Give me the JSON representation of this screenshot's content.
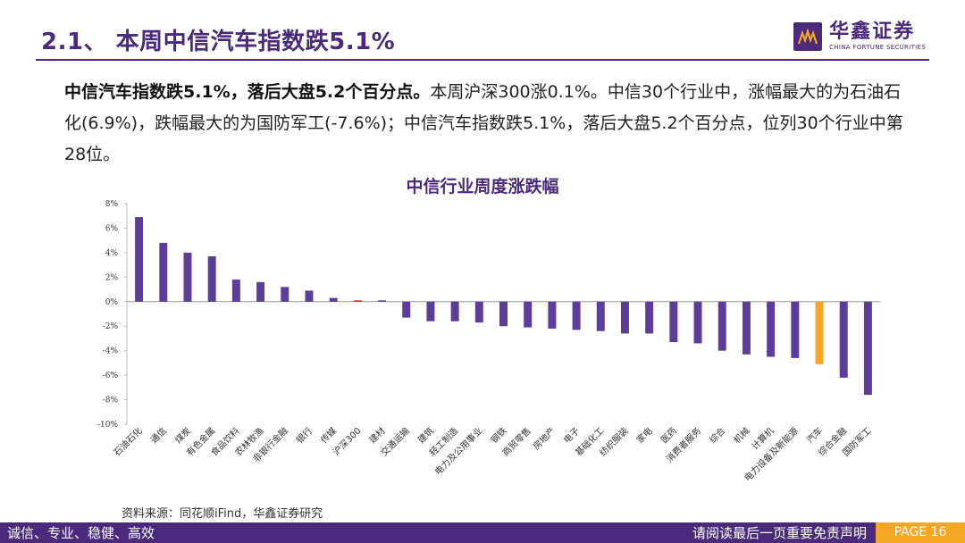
{
  "header": {
    "title": "2.1、 本周中信汽车指数跌5.1%",
    "logo_cn": "华鑫证券",
    "logo_en": "CHINA FORTUNE SECURITIES"
  },
  "summary": {
    "lead": "中信汽车指数跌5.1%，落后大盘5.2个百分点。",
    "body": "本周沪深300涨0.1%。中信30个行业中，涨幅最大的为石油石化(6.9%)，跌幅最大的为国防军工(-7.6%)；中信汽车指数跌5.1%，落后大盘5.2个百分点，位列30个行业中第28位。"
  },
  "chart_data": {
    "type": "bar",
    "title": "中信行业周度涨跌幅",
    "xlabel": "",
    "ylabel": "",
    "ylim": [
      -10,
      8
    ],
    "yticks": [
      "8%",
      "6%",
      "4%",
      "2%",
      "0%",
      "-2%",
      "-4%",
      "-6%",
      "-8%",
      "-10%"
    ],
    "categories": [
      "石油石化",
      "通信",
      "煤炭",
      "有色金属",
      "食品饮料",
      "农林牧渔",
      "非银行金融",
      "银行",
      "传媒",
      "沪深300",
      "建材",
      "交通运输",
      "建筑",
      "轻工制造",
      "电力及公用事业",
      "钢铁",
      "商贸零售",
      "房地产",
      "电子",
      "基础化工",
      "纺织服装",
      "家电",
      "医药",
      "消费者服务",
      "综合",
      "机械",
      "计算机",
      "电力设备及新能源",
      "汽车",
      "综合金融",
      "国防军工"
    ],
    "values": [
      6.9,
      4.8,
      4.0,
      3.7,
      1.8,
      1.6,
      1.2,
      0.9,
      0.3,
      0.1,
      0.05,
      -1.3,
      -1.6,
      -1.6,
      -1.7,
      -2.0,
      -2.1,
      -2.2,
      -2.3,
      -2.4,
      -2.6,
      -2.6,
      -3.3,
      -3.4,
      -4.0,
      -4.3,
      -4.5,
      -4.6,
      -5.1,
      -6.2,
      -7.6
    ],
    "colors": {
      "default": "#5c3d99",
      "benchmark": "#c0392b",
      "highlight": "#f5a623"
    },
    "benchmark_category": "沪深300",
    "highlight_category": "汽车"
  },
  "source": "资料来源：同花顺iFind，华鑫证券研究",
  "footer": {
    "left": "诚信、专业、稳健、高效",
    "right": "请阅读最后一页重要免责声明",
    "page": "PAGE 16"
  }
}
